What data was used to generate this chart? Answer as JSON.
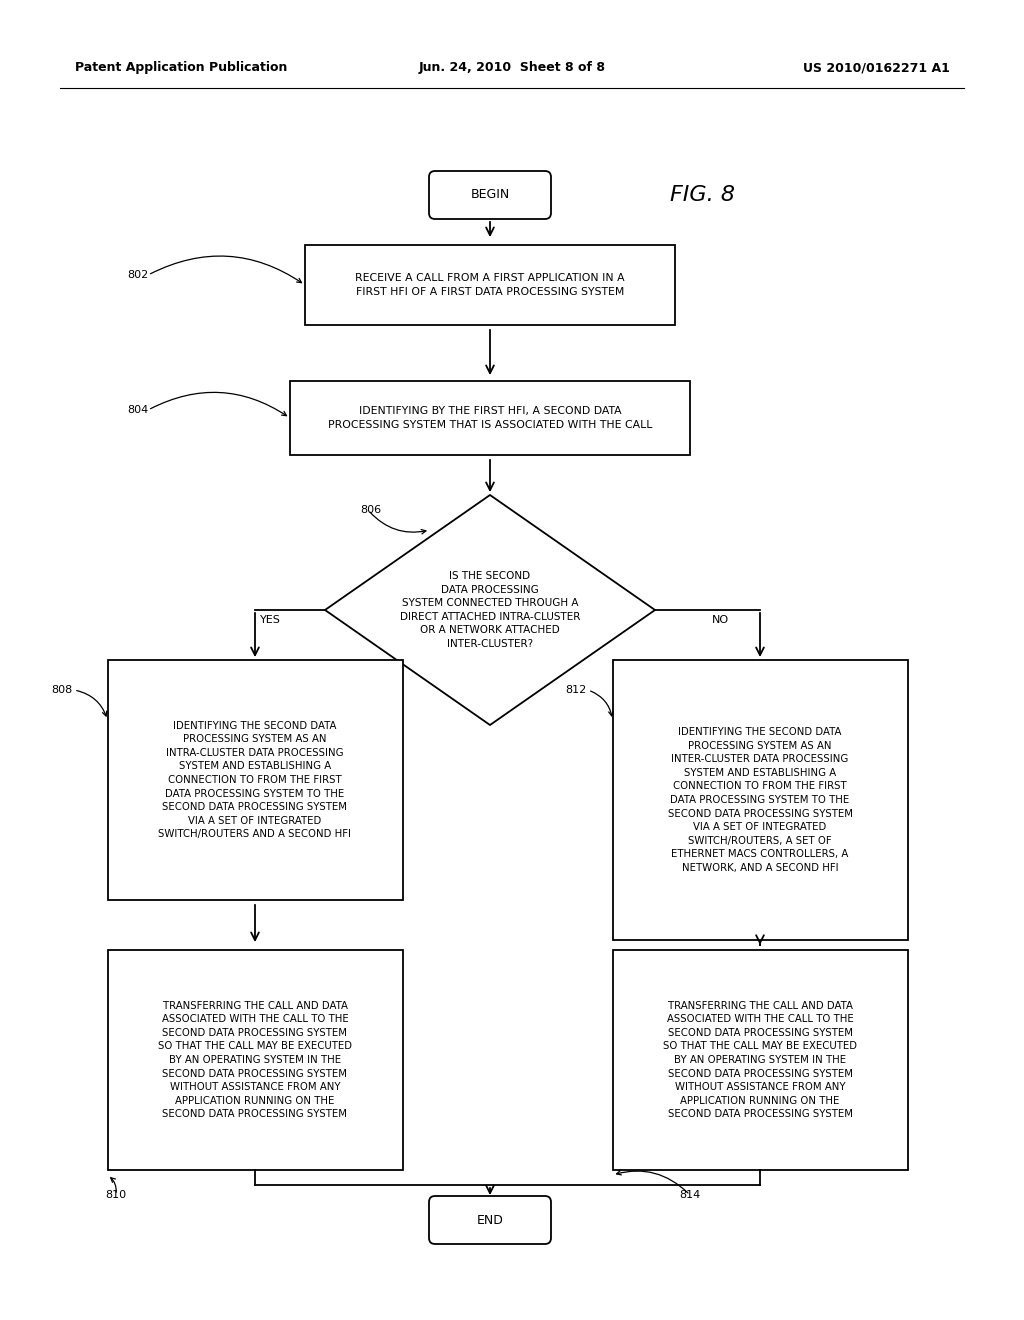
{
  "bg_color": "#ffffff",
  "header_left": "Patent Application Publication",
  "header_center": "Jun. 24, 2010  Sheet 8 of 8",
  "header_right": "US 2010/0162271 A1",
  "fig_label": "FIG. 8",
  "begin_label": "BEGIN",
  "end_label": "END",
  "node_802_label": "802",
  "node_804_label": "804",
  "node_806_label": "806",
  "node_808_label": "808",
  "node_810_label": "810",
  "node_812_label": "812",
  "node_814_label": "814",
  "box_802_text": "RECEIVE A CALL FROM A FIRST APPLICATION IN A\nFIRST HFI OF A FIRST DATA PROCESSING SYSTEM",
  "box_804_text": "IDENTIFYING BY THE FIRST HFI, A SECOND DATA\nPROCESSING SYSTEM THAT IS ASSOCIATED WITH THE CALL",
  "diamond_806_text": "IS THE SECOND\nDATA PROCESSING\nSYSTEM CONNECTED THROUGH A\nDIRECT ATTACHED INTRA-CLUSTER\nOR A NETWORK ATTACHED\nINTER-CLUSTER?",
  "yes_label": "YES",
  "no_label": "NO",
  "box_808_text": "IDENTIFYING THE SECOND DATA\nPROCESSING SYSTEM AS AN\nINTRA-CLUSTER DATA PROCESSING\nSYSTEM AND ESTABLISHING A\nCONNECTION TO FROM THE FIRST\nDATA PROCESSING SYSTEM TO THE\nSECOND DATA PROCESSING SYSTEM\nVIA A SET OF INTEGRATED\nSWITCH/ROUTERS AND A SECOND HFI",
  "box_812_text": "IDENTIFYING THE SECOND DATA\nPROCESSING SYSTEM AS AN\nINTER-CLUSTER DATA PROCESSING\nSYSTEM AND ESTABLISHING A\nCONNECTION TO FROM THE FIRST\nDATA PROCESSING SYSTEM TO THE\nSECOND DATA PROCESSING SYSTEM\nVIA A SET OF INTEGRATED\nSWITCH/ROUTERS, A SET OF\nETHERNET MACS CONTROLLERS, A\nNETWORK, AND A SECOND HFI",
  "box_810_text": "TRANSFERRING THE CALL AND DATA\nASSOCIATED WITH THE CALL TO THE\nSECOND DATA PROCESSING SYSTEM\nSO THAT THE CALL MAY BE EXECUTED\nBY AN OPERATING SYSTEM IN THE\nSECOND DATA PROCESSING SYSTEM\nWITHOUT ASSISTANCE FROM ANY\nAPPLICATION RUNNING ON THE\nSECOND DATA PROCESSING SYSTEM",
  "box_814_text": "TRANSFERRING THE CALL AND DATA\nASSOCIATED WITH THE CALL TO THE\nSECOND DATA PROCESSING SYSTEM\nSO THAT THE CALL MAY BE EXECUTED\nBY AN OPERATING SYSTEM IN THE\nSECOND DATA PROCESSING SYSTEM\nWITHOUT ASSISTANCE FROM ANY\nAPPLICATION RUNNING ON THE\nSECOND DATA PROCESSING SYSTEM"
}
